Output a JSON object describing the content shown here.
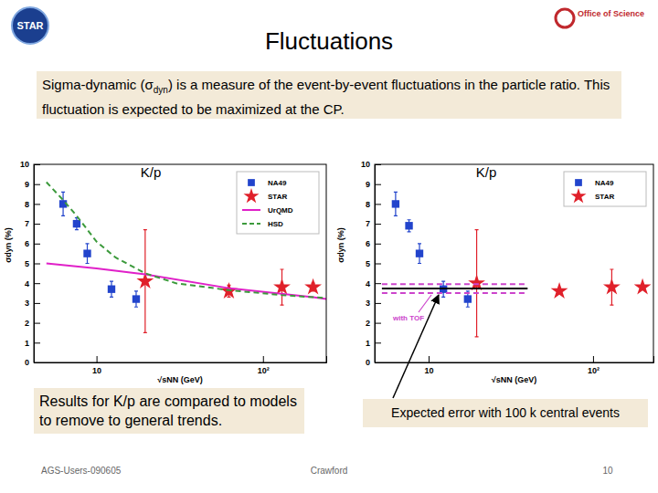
{
  "slide": {
    "title": "Fluctuations",
    "logos": [
      "STAR",
      "Office of Science"
    ],
    "description": [
      "Sigma-dynamic (σ",
      "dyn",
      ") is a measure of the event-by-event fluctuations in the particle ratio. This fluctuation is expected to be maximized at the CP."
    ],
    "captions": [
      "Results for K/p are compared to models to remove to general trends.",
      "Expected error with 100 k central events"
    ],
    "footer": [
      "AGS-Users-090605",
      "Crawford",
      "10"
    ]
  },
  "chart_data": [
    {
      "type": "scatter",
      "title": "K/p",
      "x_label": "√sNN (GeV)",
      "y_label": "σdyn (%)",
      "log": "x",
      "xlim": [
        4.2,
        240
      ],
      "ylim": [
        0,
        10
      ],
      "xticks": [
        10,
        {
          "value": 100,
          "label": "10²"
        }
      ],
      "yticks": [
        0,
        1,
        2,
        3,
        4,
        5,
        6,
        7,
        8,
        9,
        10
      ],
      "legend": "upper right",
      "series": [
        {
          "name": "NA49",
          "type": "scatter",
          "marker": "square",
          "color": "#2244cc",
          "x": [
            6.3,
            7.6,
            8.8,
            12.3,
            17.3
          ],
          "values": [
            8.0,
            7.0,
            5.5,
            3.7,
            3.2
          ],
          "errors": [
            0.6,
            0.3,
            0.5,
            0.4,
            0.4
          ]
        },
        {
          "name": "STAR",
          "type": "scatter",
          "marker": "star",
          "color": "#e0202a",
          "x": [
            19.6,
            62.4,
            130,
            200
          ],
          "values": [
            4.1,
            3.6,
            3.8,
            3.8
          ],
          "errors": [
            2.6,
            0.3,
            0.9,
            0.2
          ]
        },
        {
          "name": "UrQMD",
          "type": "line",
          "line_style": "solid",
          "color": "#e020c8",
          "x": [
            5,
            10,
            19.6,
            62.4,
            200,
            240
          ],
          "values": [
            5.0,
            4.75,
            4.45,
            3.75,
            3.3,
            3.2
          ]
        },
        {
          "name": "HSD",
          "type": "line",
          "line_style": "dashed",
          "color": "#3c9a3c",
          "x": [
            5,
            6.3,
            7.6,
            10,
            13,
            19.6,
            30,
            62.4,
            130,
            240
          ],
          "values": [
            9.1,
            8.2,
            7.4,
            6.1,
            5.3,
            4.5,
            4.0,
            3.65,
            3.4,
            3.25
          ]
        }
      ]
    },
    {
      "type": "scatter",
      "title": "K/p",
      "x_label": "√sNN (GeV)",
      "y_label": "σdyn (%)",
      "log": "x",
      "xlim": [
        4.7,
        233
      ],
      "ylim": [
        0,
        10
      ],
      "xticks": [
        10,
        {
          "value": 100,
          "label": "10²"
        }
      ],
      "yticks": [
        0,
        1,
        2,
        3,
        4,
        5,
        6,
        7,
        8,
        9,
        10
      ],
      "legend": "upper right",
      "annotation": "with TOF",
      "series": [
        {
          "name": "NA49",
          "type": "scatter",
          "marker": "square",
          "color": "#2244cc",
          "x": [
            6.3,
            7.6,
            8.8,
            12.3,
            17.3
          ],
          "values": [
            8.0,
            6.9,
            5.5,
            3.7,
            3.2
          ],
          "errors": [
            0.6,
            0.3,
            0.5,
            0.4,
            0.4
          ]
        },
        {
          "name": "STAR",
          "type": "scatter",
          "marker": "star",
          "color": "#e0202a",
          "x": [
            19.6,
            62.4,
            130,
            200
          ],
          "values": [
            4.0,
            3.6,
            3.8,
            3.8
          ],
          "errors": [
            2.7,
            0.1,
            0.9,
            0.1
          ]
        },
        {
          "type": "line",
          "line_style": "solid",
          "color": "#000000",
          "x": [
            5.2,
            40
          ],
          "values": [
            3.73,
            3.73
          ]
        },
        {
          "type": "line",
          "line_style": "dashed",
          "color": "#cc44cc",
          "x": [
            5.2,
            40
          ],
          "values": [
            3.95,
            3.95
          ]
        },
        {
          "type": "line",
          "line_style": "dashed",
          "color": "#cc44cc",
          "x": [
            5.2,
            40
          ],
          "values": [
            3.5,
            3.5
          ]
        }
      ]
    }
  ]
}
